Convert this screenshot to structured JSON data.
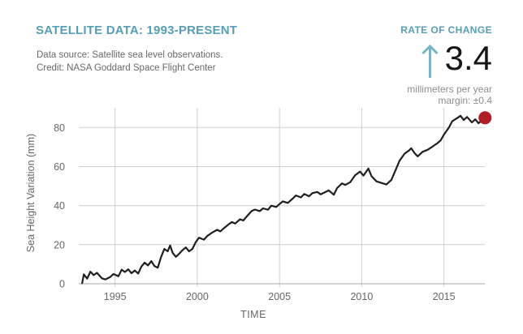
{
  "header": {
    "title": "SATELLITE DATA: 1993-PRESENT",
    "subtitle_line1": "Data source: Satellite sea level observations.",
    "subtitle_line2": "Credit: NASA Goddard Space Flight Center"
  },
  "rate_panel": {
    "heading": "RATE OF CHANGE",
    "value": "3.4",
    "unit": "millimeters per year",
    "margin": "margin: ±0.4",
    "arrow_icon": "up-arrow-icon",
    "accent_color": "#569EB6",
    "arrow_color": "#79B4C6"
  },
  "chart_data": {
    "type": "line",
    "title": "",
    "xlabel": "TIME",
    "ylabel": "Sea Height Variation (mm)",
    "x_ticks": [
      1995,
      2000,
      2005,
      2010,
      2015
    ],
    "y_ticks": [
      0,
      20,
      40,
      60,
      80
    ],
    "xlim": [
      1992.8,
      2017.6
    ],
    "ylim": [
      0,
      89
    ],
    "grid": true,
    "legend": "none",
    "line_color": "#1F1F1F",
    "grid_color": "#CFCFCF",
    "axis_color": "#A9A9A9",
    "marker": {
      "year": 2017.5,
      "value": 85,
      "color": "#B01E23"
    },
    "series": [
      {
        "name": "Sea height variation (mm)",
        "points": [
          [
            1993.0,
            0.3
          ],
          [
            1993.1,
            4.8
          ],
          [
            1993.3,
            2.6
          ],
          [
            1993.5,
            6.2
          ],
          [
            1993.7,
            4.4
          ],
          [
            1993.9,
            5.6
          ],
          [
            1994.2,
            2.8
          ],
          [
            1994.4,
            2.2
          ],
          [
            1994.7,
            3.4
          ],
          [
            1994.9,
            5.0
          ],
          [
            1995.2,
            3.8
          ],
          [
            1995.4,
            7.2
          ],
          [
            1995.6,
            6.0
          ],
          [
            1995.8,
            7.4
          ],
          [
            1996.0,
            5.4
          ],
          [
            1996.2,
            6.8
          ],
          [
            1996.4,
            5.2
          ],
          [
            1996.6,
            8.8
          ],
          [
            1996.8,
            10.8
          ],
          [
            1997.0,
            9.4
          ],
          [
            1997.2,
            11.6
          ],
          [
            1997.4,
            9.0
          ],
          [
            1997.6,
            8.2
          ],
          [
            1997.8,
            13.8
          ],
          [
            1998.0,
            17.8
          ],
          [
            1998.2,
            16.6
          ],
          [
            1998.35,
            19.6
          ],
          [
            1998.5,
            15.8
          ],
          [
            1998.7,
            13.8
          ],
          [
            1998.9,
            15.4
          ],
          [
            1999.1,
            17.2
          ],
          [
            1999.3,
            18.6
          ],
          [
            1999.5,
            16.6
          ],
          [
            1999.7,
            17.8
          ],
          [
            1999.9,
            21.2
          ],
          [
            2000.1,
            23.6
          ],
          [
            2000.4,
            22.6
          ],
          [
            2000.6,
            24.4
          ],
          [
            2000.9,
            26.2
          ],
          [
            2001.2,
            27.6
          ],
          [
            2001.4,
            26.8
          ],
          [
            2001.7,
            29.0
          ],
          [
            2001.9,
            30.4
          ],
          [
            2002.1,
            31.6
          ],
          [
            2002.3,
            30.8
          ],
          [
            2002.6,
            33.0
          ],
          [
            2002.8,
            32.4
          ],
          [
            2003.0,
            34.4
          ],
          [
            2003.3,
            37.2
          ],
          [
            2003.5,
            38.0
          ],
          [
            2003.8,
            37.2
          ],
          [
            2004.0,
            38.6
          ],
          [
            2004.3,
            37.9
          ],
          [
            2004.5,
            40.0
          ],
          [
            2004.8,
            39.3
          ],
          [
            2005.0,
            40.8
          ],
          [
            2005.2,
            42.2
          ],
          [
            2005.5,
            41.4
          ],
          [
            2005.8,
            43.6
          ],
          [
            2006.0,
            45.2
          ],
          [
            2006.3,
            44.2
          ],
          [
            2006.5,
            46.0
          ],
          [
            2006.8,
            44.8
          ],
          [
            2007.0,
            46.4
          ],
          [
            2007.3,
            47.0
          ],
          [
            2007.5,
            45.8
          ],
          [
            2007.8,
            47.0
          ],
          [
            2008.0,
            47.8
          ],
          [
            2008.3,
            45.6
          ],
          [
            2008.5,
            49.0
          ],
          [
            2008.8,
            51.4
          ],
          [
            2009.0,
            50.6
          ],
          [
            2009.3,
            52.0
          ],
          [
            2009.6,
            55.6
          ],
          [
            2009.9,
            57.4
          ],
          [
            2010.1,
            55.4
          ],
          [
            2010.4,
            59.0
          ],
          [
            2010.6,
            55.0
          ],
          [
            2010.9,
            52.4
          ],
          [
            2011.2,
            51.6
          ],
          [
            2011.5,
            50.8
          ],
          [
            2011.8,
            53.2
          ],
          [
            2012.0,
            57.0
          ],
          [
            2012.3,
            63.0
          ],
          [
            2012.6,
            66.6
          ],
          [
            2012.9,
            68.4
          ],
          [
            2013.0,
            69.4
          ],
          [
            2013.2,
            67.0
          ],
          [
            2013.4,
            65.2
          ],
          [
            2013.7,
            67.6
          ],
          [
            2014.0,
            68.6
          ],
          [
            2014.3,
            70.2
          ],
          [
            2014.6,
            72.0
          ],
          [
            2014.8,
            73.4
          ],
          [
            2015.0,
            76.4
          ],
          [
            2015.3,
            80.0
          ],
          [
            2015.5,
            83.2
          ],
          [
            2015.8,
            84.8
          ],
          [
            2016.0,
            86.0
          ],
          [
            2016.2,
            83.8
          ],
          [
            2016.4,
            85.4
          ],
          [
            2016.7,
            82.6
          ],
          [
            2016.9,
            84.2
          ],
          [
            2017.1,
            82.2
          ],
          [
            2017.3,
            83.6
          ],
          [
            2017.5,
            85.0
          ]
        ]
      }
    ]
  }
}
